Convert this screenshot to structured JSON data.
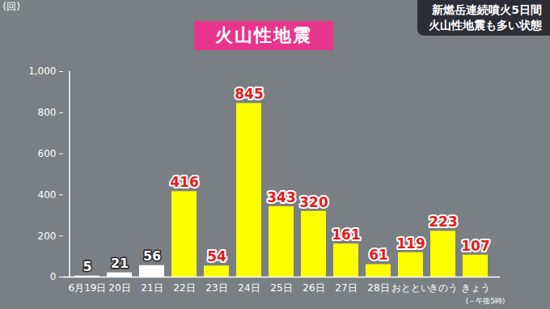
{
  "chart_data": {
    "type": "bar",
    "title": "火山性地震",
    "subtitle": [
      "新燃岳連続噴火5日間",
      "火山性地震も多い状態"
    ],
    "y_label": "(回)",
    "annotations": [
      "(～午後5時)"
    ],
    "categories": [
      "6月19日",
      "20日",
      "21日",
      "22日",
      "23日",
      "24日",
      "25日",
      "26日",
      "27日",
      "28日",
      "おととい",
      "きのう",
      "きょう"
    ],
    "values": [
      5,
      21,
      56,
      416,
      54,
      845,
      343,
      320,
      161,
      61,
      119,
      223,
      107
    ],
    "colors": [
      "#ffffff",
      "#ffffff",
      "#ffffff",
      "#ffff00",
      "#ffff00",
      "#ffff00",
      "#ffff00",
      "#ffff00",
      "#ffff00",
      "#ffff00",
      "#ffff00",
      "#ffff00",
      "#ffff00"
    ],
    "ylim": [
      0,
      1000
    ],
    "yticks": [
      0,
      200,
      400,
      600,
      800,
      {
        "value": 1000,
        "label": "1,000"
      }
    ],
    "grid": false,
    "data_labels": true
  }
}
